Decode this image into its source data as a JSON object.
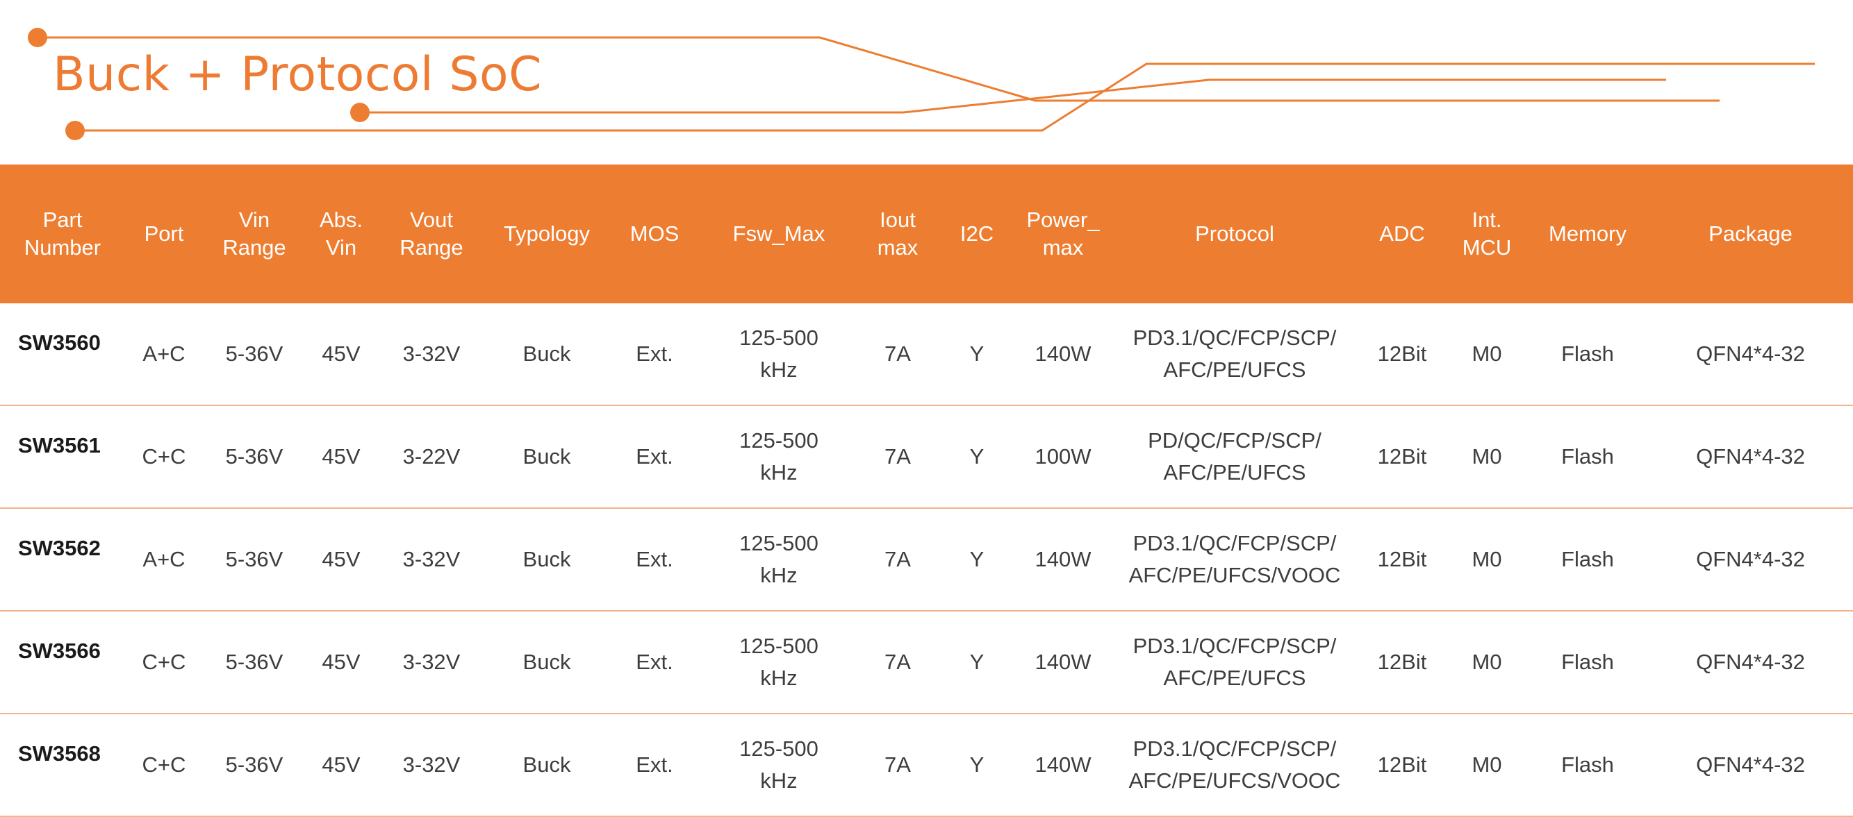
{
  "title": "Buck + Protocol SoC",
  "colors": {
    "accent": "#ED7D31",
    "row_border": "#F3B48B"
  },
  "table": {
    "headers": [
      "Part\nNumber",
      "Port",
      "Vin\nRange",
      "Abs.\nVin",
      "Vout\nRange",
      "Typology",
      "MOS",
      "Fsw_Max",
      "Iout\nmax",
      "I2C",
      "Power_\nmax",
      "Protocol",
      "ADC",
      "Int.\nMCU",
      "Memory",
      "Package"
    ],
    "rows": [
      [
        "SW3560",
        "A+C",
        "5-36V",
        "45V",
        "3-32V",
        "Buck",
        "Ext.",
        "125-500\nkHz",
        "7A",
        "Y",
        "140W",
        "PD3.1/QC/FCP/SCP/\nAFC/PE/UFCS",
        "12Bit",
        "M0",
        "Flash",
        "QFN4*4-32"
      ],
      [
        "SW3561",
        "C+C",
        "5-36V",
        "45V",
        "3-22V",
        "Buck",
        "Ext.",
        "125-500\nkHz",
        "7A",
        "Y",
        "100W",
        "PD/QC/FCP/SCP/\nAFC/PE/UFCS",
        "12Bit",
        "M0",
        "Flash",
        "QFN4*4-32"
      ],
      [
        "SW3562",
        "A+C",
        "5-36V",
        "45V",
        "3-32V",
        "Buck",
        "Ext.",
        "125-500\nkHz",
        "7A",
        "Y",
        "140W",
        "PD3.1/QC/FCP/SCP/\nAFC/PE/UFCS/VOOC",
        "12Bit",
        "M0",
        "Flash",
        "QFN4*4-32"
      ],
      [
        "SW3566",
        "C+C",
        "5-36V",
        "45V",
        "3-32V",
        "Buck",
        "Ext.",
        "125-500\nkHz",
        "7A",
        "Y",
        "140W",
        "PD3.1/QC/FCP/SCP/\nAFC/PE/UFCS",
        "12Bit",
        "M0",
        "Flash",
        "QFN4*4-32"
      ],
      [
        "SW3568",
        "C+C",
        "5-36V",
        "45V",
        "3-32V",
        "Buck",
        "Ext.",
        "125-500\nkHz",
        "7A",
        "Y",
        "140W",
        "PD3.1/QC/FCP/SCP/\nAFC/PE/UFCS/VOOC",
        "12Bit",
        "M0",
        "Flash",
        "QFN4*4-32"
      ]
    ]
  }
}
